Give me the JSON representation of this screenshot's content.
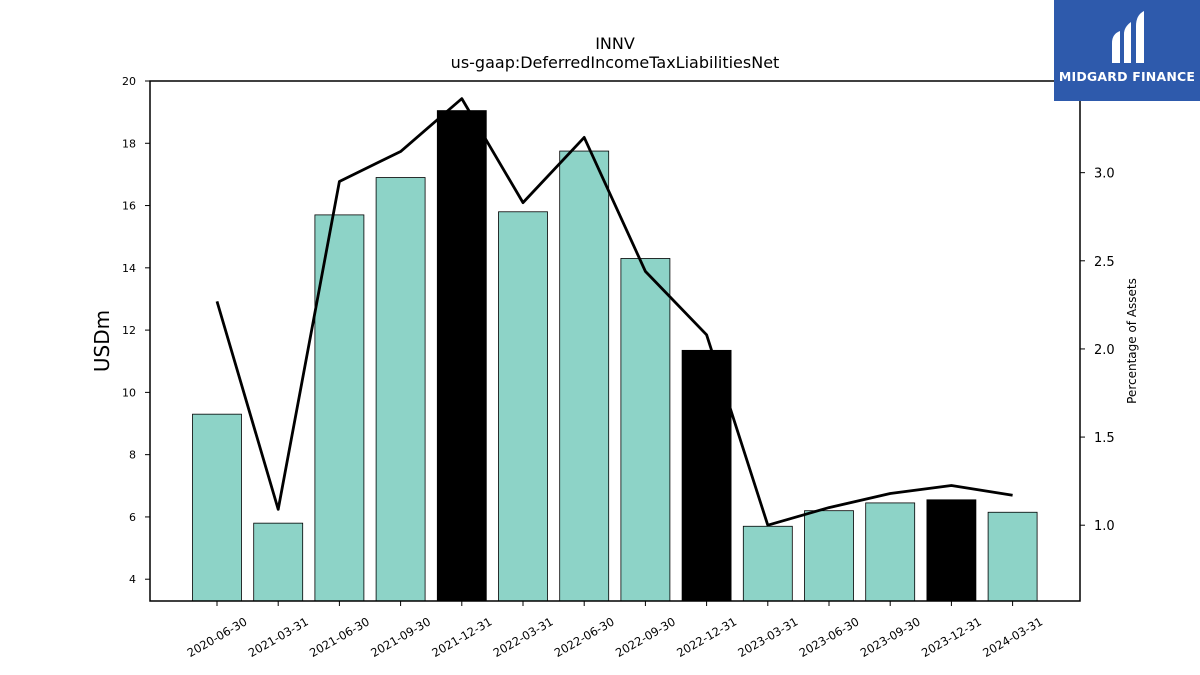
{
  "chart_data": {
    "type": "bar",
    "title": "INNV",
    "subtitle": "us-gaap:DeferredIncomeTaxLiabilitiesNet",
    "ylabel": "USDm",
    "y2label": "Percentage of Assets",
    "categories": [
      "2020-06-30",
      "2021-03-31",
      "2021-06-30",
      "2021-09-30",
      "2021-12-31",
      "2022-03-31",
      "2022-06-30",
      "2022-09-30",
      "2022-12-31",
      "2023-03-31",
      "2023-06-30",
      "2023-09-30",
      "2023-12-31",
      "2024-03-31"
    ],
    "series": [
      {
        "type": "bar",
        "axis": "left",
        "values": [
          9.3,
          5.8,
          15.7,
          16.9,
          19.05,
          15.8,
          17.75,
          14.3,
          11.35,
          5.7,
          6.2,
          6.45,
          6.55,
          6.15
        ],
        "colors": [
          "#8dd3c7",
          "#8dd3c7",
          "#8dd3c7",
          "#8dd3c7",
          "#000000",
          "#8dd3c7",
          "#8dd3c7",
          "#8dd3c7",
          "#000000",
          "#8dd3c7",
          "#8dd3c7",
          "#8dd3c7",
          "#000000",
          "#8dd3c7"
        ]
      },
      {
        "type": "line",
        "axis": "right",
        "color": "#000000",
        "values": [
          2.27,
          1.09,
          2.95,
          3.12,
          3.42,
          2.83,
          3.2,
          2.44,
          2.08,
          1.0,
          1.1,
          1.18,
          1.225,
          1.17
        ]
      }
    ],
    "ylim": [
      3.3,
      20
    ],
    "y2lim": [
      0.57,
      3.52
    ],
    "yticks": [
      4,
      6,
      8,
      10,
      12,
      14,
      16,
      18,
      20
    ],
    "y2ticks": [
      "1.0",
      "1.5",
      "2.0",
      "2.5",
      "3.0"
    ],
    "grid": false
  },
  "logo": {
    "text": "MIDGARD FINANCE",
    "color": "#2e5aac"
  }
}
